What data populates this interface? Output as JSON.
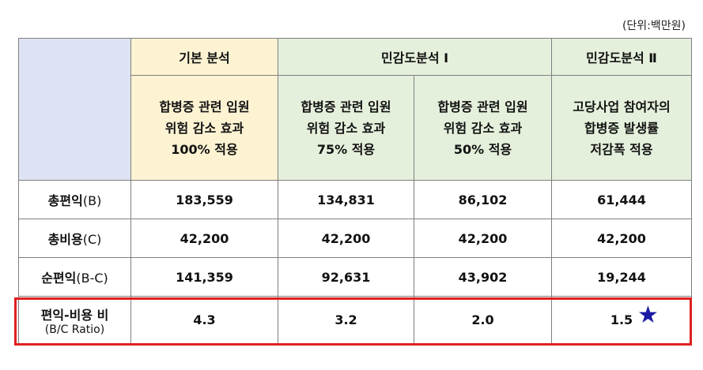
{
  "unit_note": "(단위:백만원)",
  "header": {
    "top": [
      "기본 분석",
      "민감도분석 Ⅰ",
      "민감도분석 Ⅱ"
    ],
    "scenarios": [
      [
        "합병증 관련 입원",
        "위험 감소 효과",
        "100% 적용"
      ],
      [
        "합병증 관련 입원",
        "위험 감소 효과",
        "75% 적용"
      ],
      [
        "합병증 관련 입원",
        "위험 감소 효과",
        "50% 적용"
      ],
      [
        "고당사업 참여자의",
        "합병증 발생률",
        "저감폭 적용"
      ]
    ]
  },
  "rows": [
    {
      "label": "총편익",
      "paren": "(B)",
      "values": [
        "183,559",
        "134,831",
        "86,102",
        "61,444"
      ]
    },
    {
      "label": "총비용",
      "paren": "(C)",
      "values": [
        "42,200",
        "42,200",
        "42,200",
        "42,200"
      ]
    },
    {
      "label": "순편익",
      "paren": "(B-C)",
      "values": [
        "141,359",
        "92,631",
        "43,902",
        "19,244"
      ]
    },
    {
      "label": "편익-비용 비",
      "sub": "(B/C Ratio)",
      "values": [
        "4.3",
        "3.2",
        "2.0",
        "1.5"
      ]
    }
  ],
  "star_icon": "★",
  "colors": {
    "header_blue": "#dde3f3",
    "header_yellow": "#fdf3d3",
    "header_green": "#e5f0dc",
    "highlight_red": "#e02020",
    "star_blue": "#1a1aa6"
  }
}
